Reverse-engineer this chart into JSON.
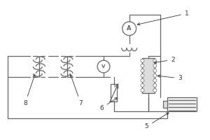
{
  "line_color": "#666666",
  "label_color": "#333333",
  "lw": 0.9,
  "fig_w": 3.0,
  "fig_h": 2.0,
  "dpi": 100
}
